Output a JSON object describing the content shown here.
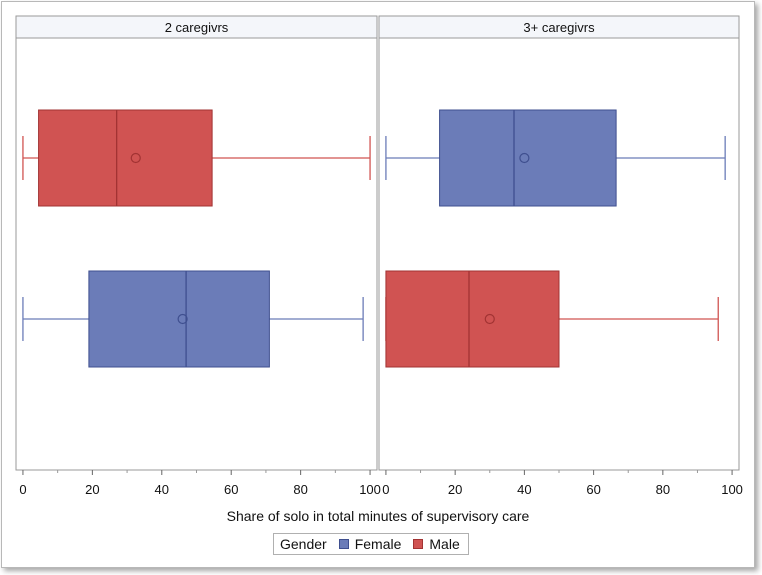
{
  "chart_data": {
    "type": "boxplot",
    "orientation": "horizontal",
    "xlabel": "Share of solo in total minutes of supervisory care",
    "xlim": [
      -2,
      102
    ],
    "xticks": [
      0,
      20,
      40,
      60,
      80,
      100
    ],
    "colors": {
      "Female": "#6b7cb8",
      "Male": "#d05352"
    },
    "panels": [
      {
        "title": "2 caregivrs",
        "boxes": [
          {
            "group": "Male",
            "min": 0,
            "q1": 4.5,
            "median": 27,
            "q3": 54.5,
            "max": 100,
            "mean": 32.5
          },
          {
            "group": "Female",
            "min": 0,
            "q1": 19,
            "median": 47,
            "q3": 71,
            "max": 98,
            "mean": 46
          }
        ]
      },
      {
        "title": "3+ caregivrs",
        "boxes": [
          {
            "group": "Female",
            "min": 0,
            "q1": 15.5,
            "median": 37,
            "q3": 66.5,
            "max": 98,
            "mean": 40
          },
          {
            "group": "Male",
            "min": 0,
            "q1": 0,
            "median": 24,
            "q3": 50,
            "max": 96,
            "mean": 30
          }
        ]
      }
    ],
    "legend": {
      "title": "Gender",
      "entries": [
        "Female",
        "Male"
      ],
      "position": "bottom-center"
    }
  }
}
